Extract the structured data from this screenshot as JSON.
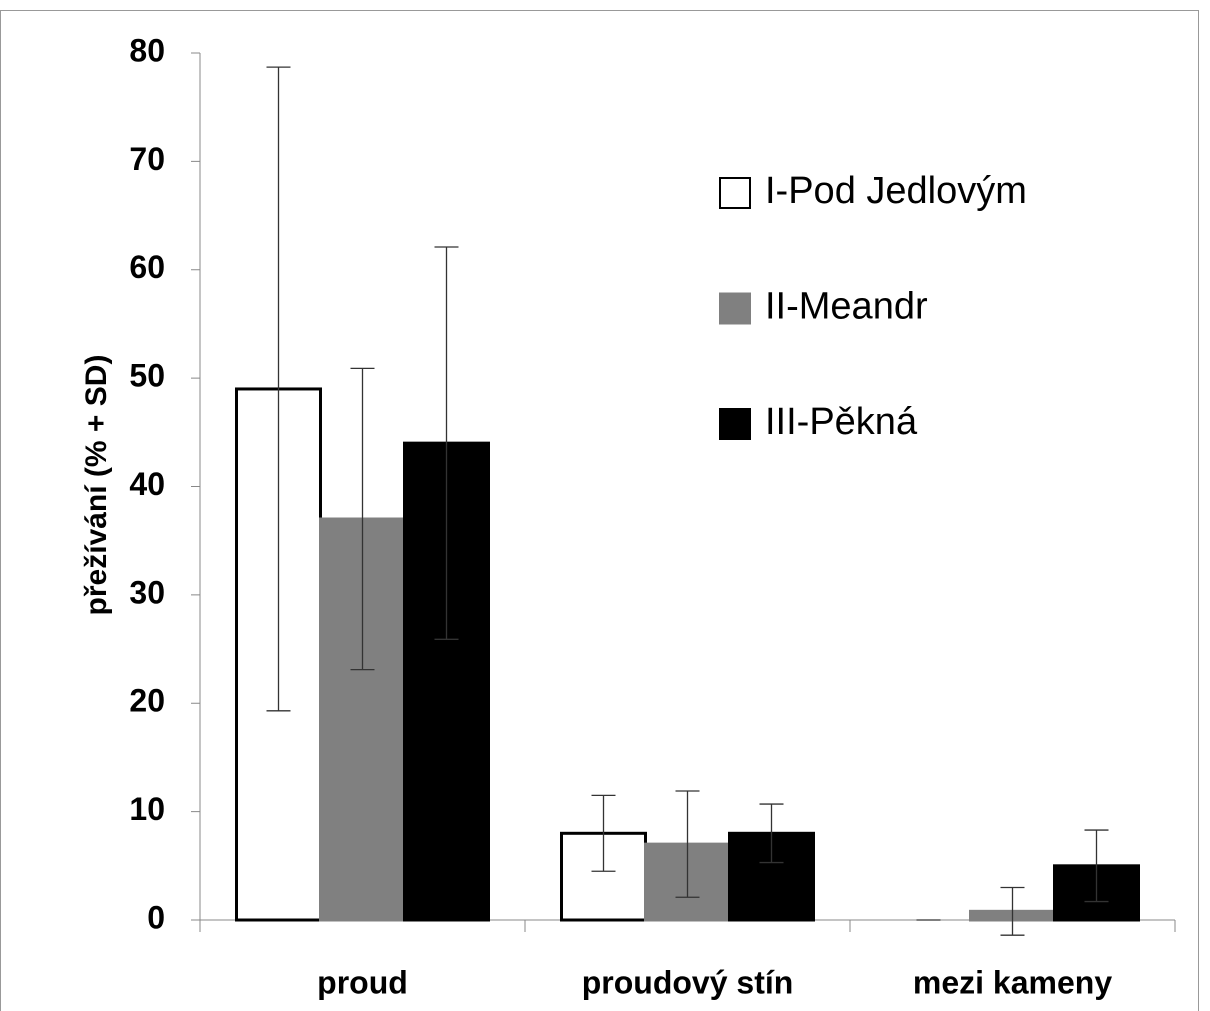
{
  "chart_data": {
    "type": "bar",
    "ylabel": "přežívání (% + SD)",
    "categories": [
      "proud",
      "proudový stín",
      "mezi kameny"
    ],
    "series": [
      {
        "name": "I-Pod Jedlovým",
        "color": "#ffffff",
        "edgecolor": "#000000",
        "values": [
          49,
          8,
          0
        ],
        "errors": [
          29.7,
          3.5,
          0
        ]
      },
      {
        "name": "II-Meandr",
        "color": "#808080",
        "edgecolor": "#808080",
        "values": [
          37,
          7,
          0.8
        ],
        "errors": [
          13.9,
          4.9,
          2.2
        ]
      },
      {
        "name": "III-Pěkná",
        "color": "#000000",
        "edgecolor": "#000000",
        "values": [
          44,
          8,
          5
        ],
        "errors": [
          18.1,
          2.7,
          3.3
        ]
      }
    ],
    "ylim": [
      0,
      80
    ],
    "yticks": [
      0,
      10,
      20,
      30,
      40,
      50,
      60,
      70,
      80
    ],
    "grid": false,
    "legend": "upper right"
  }
}
